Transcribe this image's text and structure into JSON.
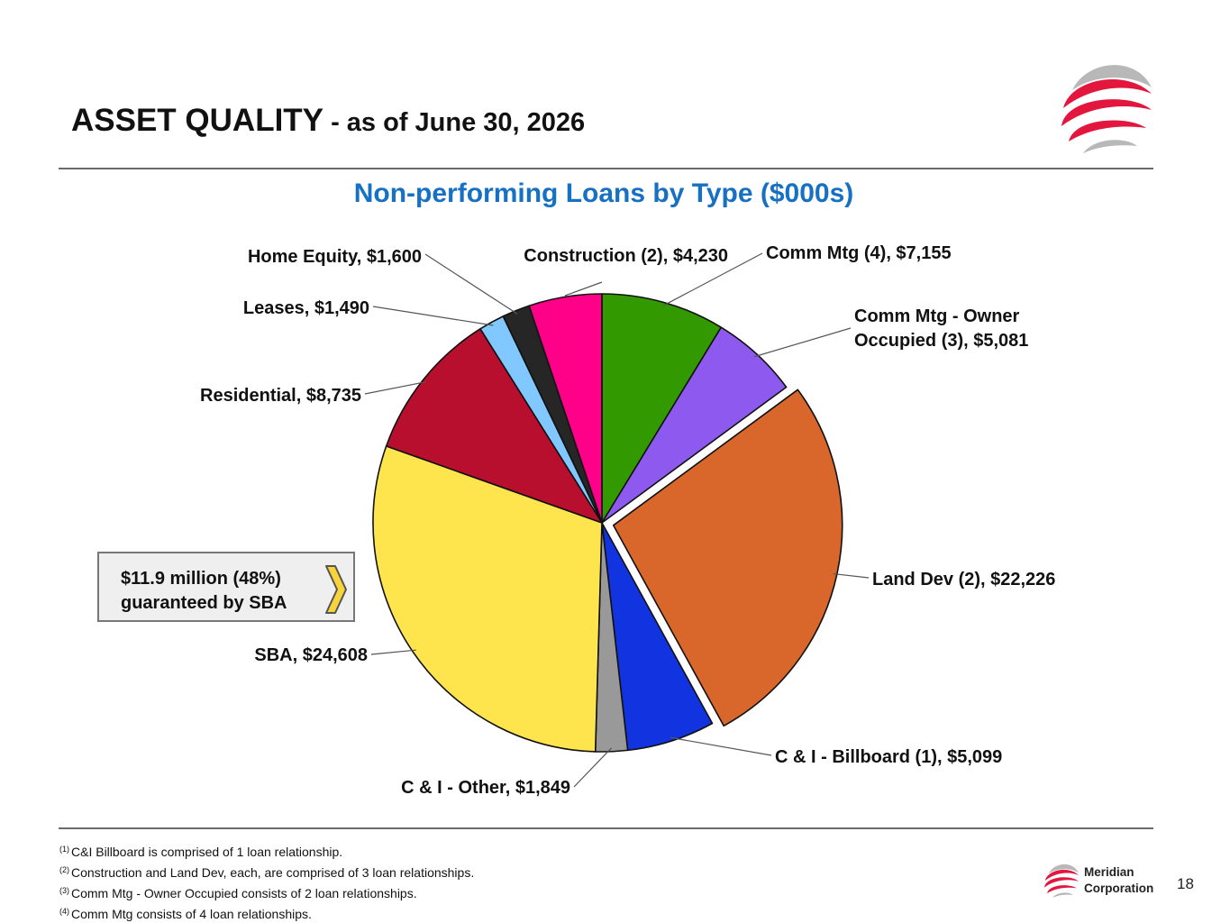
{
  "header": {
    "title_main": "ASSET QUALITY",
    "title_sub": " - as of June 30, 2026"
  },
  "callout": {
    "line1": "$11.9 million (48%)",
    "line2": "guaranteed by SBA"
  },
  "footnotes": [
    {
      "mark": "(1)",
      "text": "C&I Billboard is comprised of 1 loan relationship."
    },
    {
      "mark": "(2)",
      "text": "Construction and Land Dev, each, are comprised of 3 loan relationships."
    },
    {
      "mark": "(3)",
      "text": "Comm Mtg - Owner Occupied consists of 2 loan relationships."
    },
    {
      "mark": "(4)",
      "text": "Comm Mtg consists of 4 loan relationships."
    }
  ],
  "footer": {
    "brand_line1": "Meridian",
    "brand_line2": "Corporation",
    "page_number": "18"
  },
  "colors": {
    "title_blue": "#1670c4",
    "logo_red": "#e3173e",
    "logo_gray": "#b8b8b8"
  },
  "chart_data": {
    "type": "pie",
    "title": "Non-performing Loans by Type ($000s)",
    "unit": "$000s",
    "exploded": "Land Dev (2)",
    "slices": [
      {
        "name": "Comm Mtg (4)",
        "value": 7155,
        "label": "Comm Mtg (4), $7,155",
        "color": "#339900"
      },
      {
        "name": "Comm Mtg - Owner Occupied (3)",
        "value": 5081,
        "label": "Comm Mtg - Owner Occupied (3), $5,081",
        "color": "#8e59ef"
      },
      {
        "name": "Land Dev (2)",
        "value": 22226,
        "label": "Land Dev (2), $22,226",
        "color": "#d9662b"
      },
      {
        "name": "C & I - Billboard (1)",
        "value": 5099,
        "label": "C & I - Billboard (1), $5,099",
        "color": "#1133e0"
      },
      {
        "name": "C & I - Other",
        "value": 1849,
        "label": "C & I - Other, $1,849",
        "color": "#999999"
      },
      {
        "name": "SBA",
        "value": 24608,
        "label": "SBA, $24,608",
        "color": "#ffe54d"
      },
      {
        "name": "Residential",
        "value": 8735,
        "label": "Residential, $8,735",
        "color": "#b80f2e"
      },
      {
        "name": "Leases",
        "value": 1490,
        "label": "Leases, $1,490",
        "color": "#80c8ff"
      },
      {
        "name": "Home Equity",
        "value": 1600,
        "label": "Home Equity, $1,600",
        "color": "#262626"
      },
      {
        "name": "Construction (2)",
        "value": 4230,
        "label": "Construction (2), $4,230",
        "color": "#ff0088"
      }
    ]
  }
}
